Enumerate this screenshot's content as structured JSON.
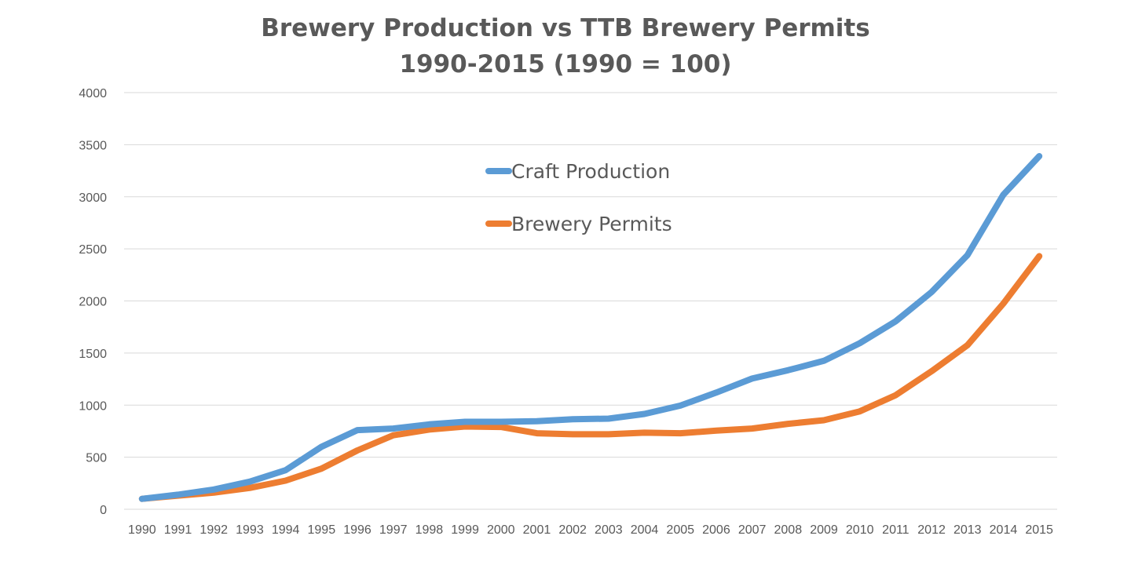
{
  "chart_data": {
    "type": "line",
    "title": "Brewery Production vs TTB Brewery Permits",
    "subtitle": "1990-2015 (1990 = 100)",
    "xlabel": "",
    "ylabel": "",
    "x": [
      "1990",
      "1991",
      "1992",
      "1993",
      "1994",
      "1995",
      "1996",
      "1997",
      "1998",
      "1999",
      "2000",
      "2001",
      "2002",
      "2003",
      "2004",
      "2005",
      "2006",
      "2007",
      "2008",
      "2009",
      "2010",
      "2011",
      "2012",
      "2013",
      "2014",
      "2015"
    ],
    "ylim": [
      0,
      4000
    ],
    "yticks": [
      0,
      500,
      1000,
      1500,
      2000,
      2500,
      3000,
      3500,
      4000
    ],
    "grid": true,
    "legend_position": "top-center",
    "series": [
      {
        "name": "Craft Production",
        "color": "#5b9bd5",
        "values": [
          100,
          140,
          190,
          265,
          375,
          600,
          760,
          775,
          815,
          840,
          840,
          845,
          865,
          870,
          915,
          995,
          1120,
          1255,
          1335,
          1425,
          1595,
          1805,
          2085,
          2440,
          3020,
          3390
        ]
      },
      {
        "name": "Brewery Permits",
        "color": "#ed7d31",
        "values": [
          100,
          130,
          160,
          205,
          275,
          390,
          565,
          710,
          765,
          795,
          790,
          730,
          720,
          720,
          735,
          730,
          755,
          775,
          820,
          855,
          940,
          1095,
          1325,
          1575,
          1975,
          2430
        ]
      }
    ]
  }
}
